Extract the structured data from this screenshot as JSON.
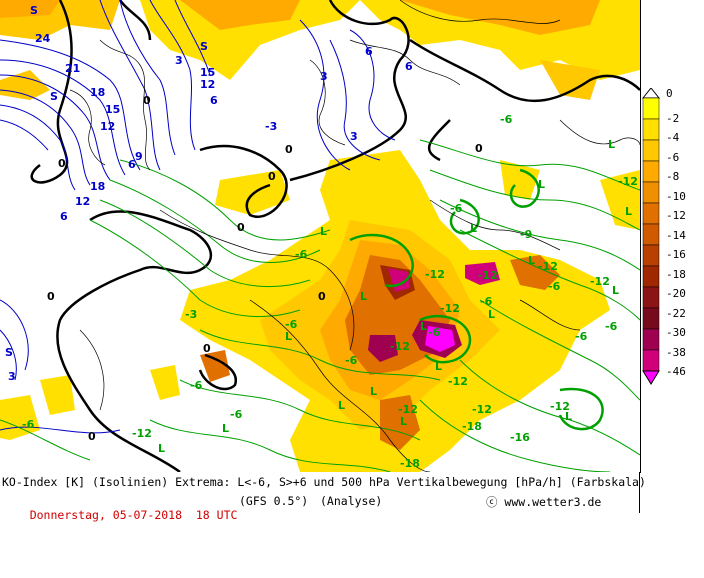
{
  "caption": {
    "line1": "KO-Index [K] (Isolinien) Extrema: L<-6, S>+6 und 500 hPa Vertikalbewegung [hPa/h] (Farbskala)",
    "date": "Donnerstag, 05-07-2018  18 UTC",
    "model": "(GFS 0.5°)",
    "analysis": "(Analyse)",
    "credit": "ⓒ www.wetter3.de"
  },
  "legend": {
    "labels": [
      "0",
      "-2",
      "-4",
      "-6",
      "-8",
      "-10",
      "-12",
      "-14",
      "-16",
      "-18",
      "-20",
      "-22",
      "-30",
      "-38",
      "-46"
    ],
    "colors": [
      "#ffffff",
      "#ffff00",
      "#ffe000",
      "#ffc800",
      "#ffaa00",
      "#f09000",
      "#e07000",
      "#d05a00",
      "#b84000",
      "#a02800",
      "#8c1414",
      "#780a1e",
      "#a00050",
      "#d0007a",
      "#ff00ff"
    ]
  },
  "map_labels": {
    "blue": [
      "S",
      "24",
      "21",
      "18",
      "15",
      "12",
      "9",
      "6",
      "3",
      "S",
      "S",
      "15",
      "12",
      "6",
      "18",
      "12",
      "6",
      "3",
      "6",
      "3",
      "6",
      "S",
      "3",
      "-3"
    ],
    "black": [
      "0",
      "0",
      "0",
      "0",
      "0",
      "0",
      "0",
      "0",
      "0",
      "0"
    ],
    "green": [
      "L",
      "L",
      "L",
      "L",
      "L",
      "L",
      "L",
      "L",
      "L",
      "L",
      "L",
      "L",
      "L",
      "L",
      "L",
      "L",
      "L",
      "L",
      "-6",
      "-6",
      "-6",
      "-6",
      "-6",
      "-6",
      "-6",
      "-6",
      "-6",
      "-9",
      "-12",
      "-12",
      "-12",
      "-12",
      "-12",
      "-12",
      "-12",
      "-12",
      "-12",
      "-12",
      "-12",
      "-12",
      "-6",
      "-6",
      "-16",
      "-18",
      "-18",
      "-6",
      "-6",
      "-3"
    ]
  },
  "colors": {
    "isoline_green": "#00a000",
    "isoline_blue": "#0000c8",
    "zero_line": "#000000",
    "coast": "#000000"
  }
}
